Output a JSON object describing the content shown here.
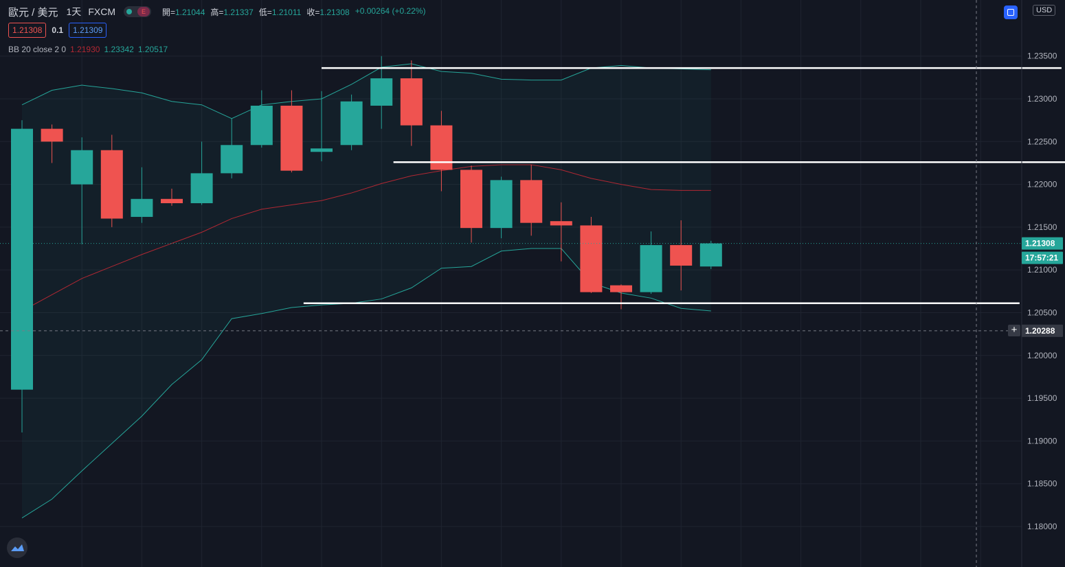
{
  "header": {
    "symbol": "歐元 / 美元",
    "timeframe": "1天",
    "exchange": "FXCM",
    "ohlc": {
      "open_label": "開=",
      "open": "1.21044",
      "high_label": "高=",
      "high": "1.21337",
      "low_label": "低=",
      "low": "1.21011",
      "close_label": "收=",
      "close": "1.21308",
      "change": "+0.00264 (+0.22%)"
    }
  },
  "quote": {
    "sell": "1.21308",
    "spread": "0.1",
    "buy": "1.21309"
  },
  "indicator": {
    "label": "BB 20 close 2 0",
    "basis": "1.21930",
    "upper": "1.23342",
    "lower": "1.20517"
  },
  "currency": "USD",
  "price_badges": {
    "last_price": "1.21308",
    "countdown": "17:57:21",
    "crosshair": "1.20288"
  },
  "colors": {
    "up": "#26a69a",
    "down": "#ef5350",
    "basis": "#b22833",
    "band": "#26a69a",
    "background": "#131722",
    "hline": "#ffffff"
  },
  "icons": {
    "logo": "tradingview-logo-icon",
    "settings": "settings-square-icon",
    "add": "plus-icon"
  },
  "chart_data": {
    "type": "candlestick",
    "y_ticks": [
      "1.18000",
      "1.18500",
      "1.19000",
      "1.19500",
      "1.20000",
      "1.20500",
      "1.21000",
      "1.21500",
      "1.22000",
      "1.22500",
      "1.23000",
      "1.23500"
    ],
    "ylim": [
      1.1772,
      1.24
    ],
    "grid": true,
    "candles": [
      {
        "o": 1.196,
        "h": 1.2275,
        "l": 1.191,
        "c": 1.2265
      },
      {
        "o": 1.2265,
        "h": 1.227,
        "l": 1.2225,
        "c": 1.225
      },
      {
        "o": 1.22,
        "h": 1.2255,
        "l": 1.213,
        "c": 1.224
      },
      {
        "o": 1.224,
        "h": 1.2258,
        "l": 1.215,
        "c": 1.216
      },
      {
        "o": 1.2162,
        "h": 1.222,
        "l": 1.2155,
        "c": 1.2183
      },
      {
        "o": 1.2183,
        "h": 1.2195,
        "l": 1.2175,
        "c": 1.2178
      },
      {
        "o": 1.2178,
        "h": 1.225,
        "l": 1.2176,
        "c": 1.2213
      },
      {
        "o": 1.2213,
        "h": 1.2277,
        "l": 1.2207,
        "c": 1.2246
      },
      {
        "o": 1.2246,
        "h": 1.231,
        "l": 1.2243,
        "c": 1.2292
      },
      {
        "o": 1.2292,
        "h": 1.231,
        "l": 1.2214,
        "c": 1.2216
      },
      {
        "o": 1.2238,
        "h": 1.2309,
        "l": 1.2227,
        "c": 1.2242
      },
      {
        "o": 1.2246,
        "h": 1.2305,
        "l": 1.224,
        "c": 1.2297
      },
      {
        "o": 1.2292,
        "h": 1.235,
        "l": 1.2265,
        "c": 1.2324
      },
      {
        "o": 1.2324,
        "h": 1.2345,
        "l": 1.2245,
        "c": 1.2269
      },
      {
        "o": 1.2269,
        "h": 1.2286,
        "l": 1.2192,
        "c": 1.2217
      },
      {
        "o": 1.2217,
        "h": 1.2222,
        "l": 1.2132,
        "c": 1.2149
      },
      {
        "o": 1.2149,
        "h": 1.2209,
        "l": 1.2137,
        "c": 1.2205
      },
      {
        "o": 1.2205,
        "h": 1.2223,
        "l": 1.214,
        "c": 1.2155
      },
      {
        "o": 1.2157,
        "h": 1.2179,
        "l": 1.211,
        "c": 1.2152
      },
      {
        "o": 1.2152,
        "h": 1.2162,
        "l": 1.2073,
        "c": 1.2074
      },
      {
        "o": 1.2082,
        "h": 1.2083,
        "l": 1.2054,
        "c": 1.2074
      },
      {
        "o": 1.2074,
        "h": 1.2145,
        "l": 1.2072,
        "c": 1.2129
      },
      {
        "o": 1.2129,
        "h": 1.2158,
        "l": 1.2076,
        "c": 1.2105
      },
      {
        "o": 1.2104,
        "h": 1.2134,
        "l": 1.2101,
        "c": 1.2131
      }
    ],
    "bollinger": {
      "upper": [
        1.2293,
        1.231,
        1.2316,
        1.2312,
        1.2307,
        1.2297,
        1.2293,
        1.2277,
        1.2293,
        1.2297,
        1.23,
        1.2317,
        1.2337,
        1.2341,
        1.2332,
        1.233,
        1.2323,
        1.2322,
        1.2322,
        1.2336,
        1.2339,
        1.2336,
        1.2335,
        1.2334
      ],
      "basis": [
        1.2052,
        1.2071,
        1.209,
        1.2104,
        1.2118,
        1.2131,
        1.2144,
        1.216,
        1.2171,
        1.2176,
        1.2181,
        1.219,
        1.2201,
        1.221,
        1.2216,
        1.2221,
        1.2223,
        1.2223,
        1.2217,
        1.2207,
        1.22,
        1.2194,
        1.2193,
        1.2193
      ],
      "lower": [
        1.181,
        1.1832,
        1.1865,
        1.1897,
        1.1929,
        1.1966,
        1.1995,
        1.2043,
        1.2049,
        1.2056,
        1.2059,
        1.2061,
        1.2066,
        1.2079,
        1.2102,
        1.2104,
        1.2122,
        1.2125,
        1.2125,
        1.2085,
        1.2073,
        1.2067,
        1.2055,
        1.2052
      ]
    },
    "horizontal_lines": [
      {
        "y": 1.2336,
        "x_from": 10.0,
        "x_to": 34.7
      },
      {
        "y": 1.2226,
        "x_from": 12.4,
        "x_to": 34.9
      },
      {
        "y": 1.2061,
        "x_from": 9.4,
        "x_to": 33.3
      }
    ]
  }
}
